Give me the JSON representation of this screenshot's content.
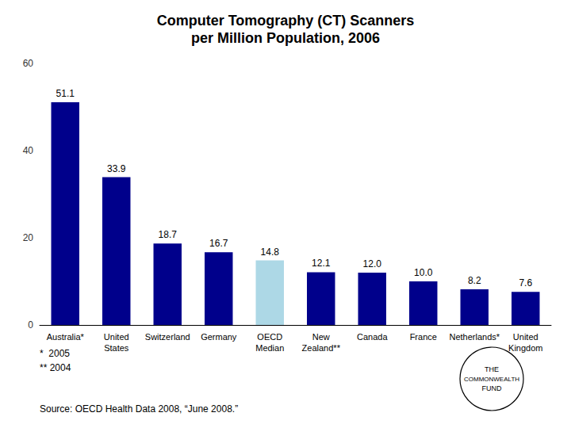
{
  "chart_data": {
    "type": "bar",
    "title": "Computer Tomography (CT) Scanners\nper Million Population, 2006",
    "categories": [
      "Australia*",
      "United\nStates",
      "Switzerland",
      "Germany",
      "OECD\nMedian",
      "New\nZealand**",
      "Canada",
      "France",
      "Netherlands*",
      "United\nKingdom"
    ],
    "values": [
      51.1,
      33.9,
      18.7,
      16.7,
      14.8,
      12.1,
      12.0,
      10.0,
      8.2,
      7.6
    ],
    "value_labels": [
      "51.1",
      "33.9",
      "18.7",
      "16.7",
      "14.8",
      "12.1",
      "12.0",
      "10.0",
      "8.2",
      "7.6"
    ],
    "colors": [
      "#00008B",
      "#00008B",
      "#00008B",
      "#00008B",
      "#ADD8E6",
      "#00008B",
      "#00008B",
      "#00008B",
      "#00008B",
      "#00008B"
    ],
    "ylim": [
      0,
      60
    ],
    "yticks": [
      0,
      20,
      40,
      60
    ],
    "grid": false,
    "data_labels": true,
    "annotations": [
      "*  2005",
      "** 2004",
      "Source: OECD Health Data 2008, “June 2008.”",
      "THE",
      "COMMONWEALTH",
      "FUND"
    ]
  }
}
